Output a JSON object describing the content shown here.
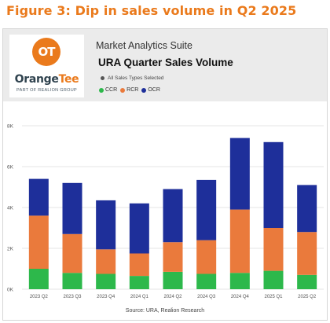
{
  "figure_title": "Figure 3: Dip in sales volume in Q2 2025",
  "logo": {
    "mark": "OT",
    "word_part1": "Orange",
    "word_part2": "Tee",
    "sub": "PART OF REALION GROUP"
  },
  "header": {
    "suite": "Market Analytics Suite",
    "title": "URA Quarter Sales Volume",
    "filter": "All Sales Types Selected"
  },
  "colors": {
    "CCR": "#2db84b",
    "RCR": "#ea7a3c",
    "OCR": "#1e2f9a",
    "accent": "#ea7a1c"
  },
  "chart_data": {
    "type": "bar",
    "stacked": true,
    "categories": [
      "2023 Q2",
      "2023 Q3",
      "2023 Q4",
      "2024 Q1",
      "2024 Q2",
      "2024 Q3",
      "2024 Q4",
      "2025 Q1",
      "2025 Q2"
    ],
    "series": [
      {
        "name": "CCR",
        "values": [
          1000,
          800,
          750,
          650,
          850,
          750,
          800,
          900,
          700
        ]
      },
      {
        "name": "RCR",
        "values": [
          2600,
          1900,
          1200,
          1100,
          1450,
          1650,
          3100,
          2100,
          2100
        ]
      },
      {
        "name": "OCR",
        "values": [
          1800,
          2500,
          2400,
          2450,
          2600,
          2950,
          3500,
          4200,
          2300
        ]
      }
    ],
    "y_ticks": [
      "0K",
      "2K",
      "4K",
      "6K",
      "8K"
    ],
    "ylim": [
      0,
      8000
    ],
    "grid": true,
    "legend": "top-left",
    "source": "Source: URA, Realion Research"
  }
}
